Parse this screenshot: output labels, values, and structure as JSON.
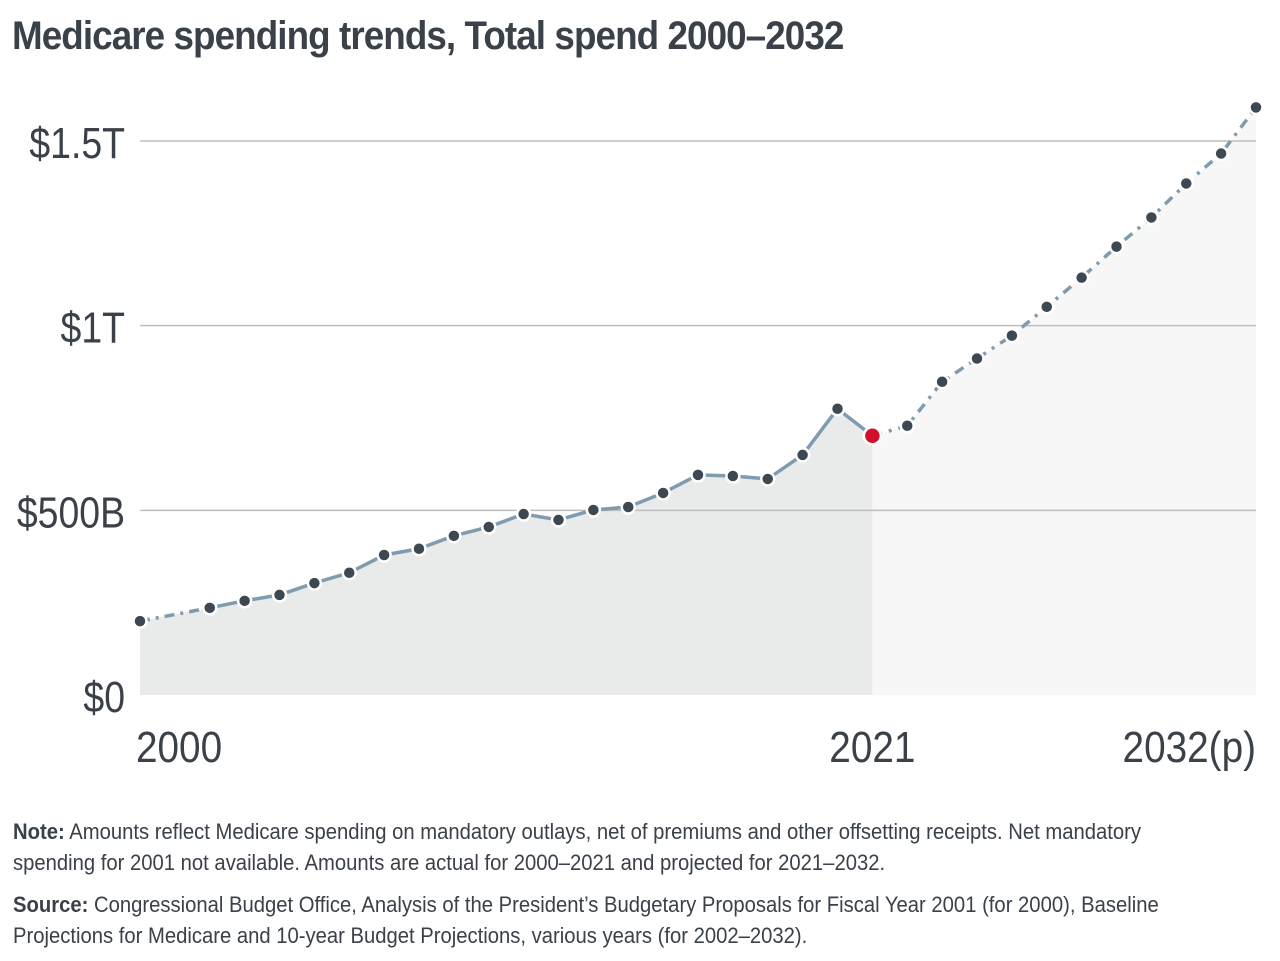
{
  "chart_data": {
    "type": "line",
    "title": "Medicare spending trends, Total spend 2000–2032",
    "xlabel": "",
    "ylabel": "",
    "ylim": [
      0,
      1500
    ],
    "y_unit": "billions USD",
    "y_ticks": [
      {
        "value": 0,
        "label": "$0"
      },
      {
        "value": 500,
        "label": "$500B"
      },
      {
        "value": 1000,
        "label": "$1T"
      },
      {
        "value": 1500,
        "label": "$1.5T"
      }
    ],
    "x_ticks": [
      {
        "value": 2000,
        "label": "2000"
      },
      {
        "value": 2021,
        "label": "2021"
      },
      {
        "value": 2032,
        "label": "2032(p)"
      }
    ],
    "xlim": [
      2000,
      2032
    ],
    "grid": true,
    "highlight_year": 2021,
    "colors": {
      "line": "#7f9bb0",
      "point": "#3d4852",
      "highlight": "#d0102b",
      "actual_fill": "#e9eaea",
      "projected_fill": "#f7f7f7",
      "grid": "#bdbdbd"
    },
    "series": [
      {
        "name": "Total spend",
        "points": [
          [
            2000,
            200
          ],
          [
            2002,
            236
          ],
          [
            2003,
            255
          ],
          [
            2004,
            271
          ],
          [
            2005,
            303
          ],
          [
            2006,
            331
          ],
          [
            2007,
            379
          ],
          [
            2008,
            396
          ],
          [
            2009,
            431
          ],
          [
            2010,
            455
          ],
          [
            2011,
            490
          ],
          [
            2012,
            474
          ],
          [
            2013,
            501
          ],
          [
            2014,
            509
          ],
          [
            2015,
            547
          ],
          [
            2016,
            596
          ],
          [
            2017,
            593
          ],
          [
            2018,
            585
          ],
          [
            2019,
            650
          ],
          [
            2020,
            775
          ],
          [
            2021,
            702
          ],
          [
            2022,
            729
          ],
          [
            2023,
            848
          ],
          [
            2024,
            911
          ],
          [
            2025,
            973
          ],
          [
            2026,
            1051
          ],
          [
            2027,
            1130
          ],
          [
            2028,
            1214
          ],
          [
            2029,
            1293
          ],
          [
            2030,
            1385
          ],
          [
            2031,
            1466
          ],
          [
            2032,
            1591
          ]
        ]
      }
    ]
  },
  "notes": {
    "note_label": "Note:",
    "note_text": " Amounts reflect Medicare spending on mandatory outlays, net of premiums and other offsetting receipts. Net mandatory spending for 2001 not available. Amounts are actual for 2000–2021 and projected for 2021–2032.",
    "source_label": "Source:",
    "source_text": " Congressional Budget Office, Analysis of the President’s Budgetary Proposals for Fiscal Year 2001 (for 2000), Baseline Projections for Medicare and 10-year Budget Projections, various years (for 2002–2032)."
  }
}
